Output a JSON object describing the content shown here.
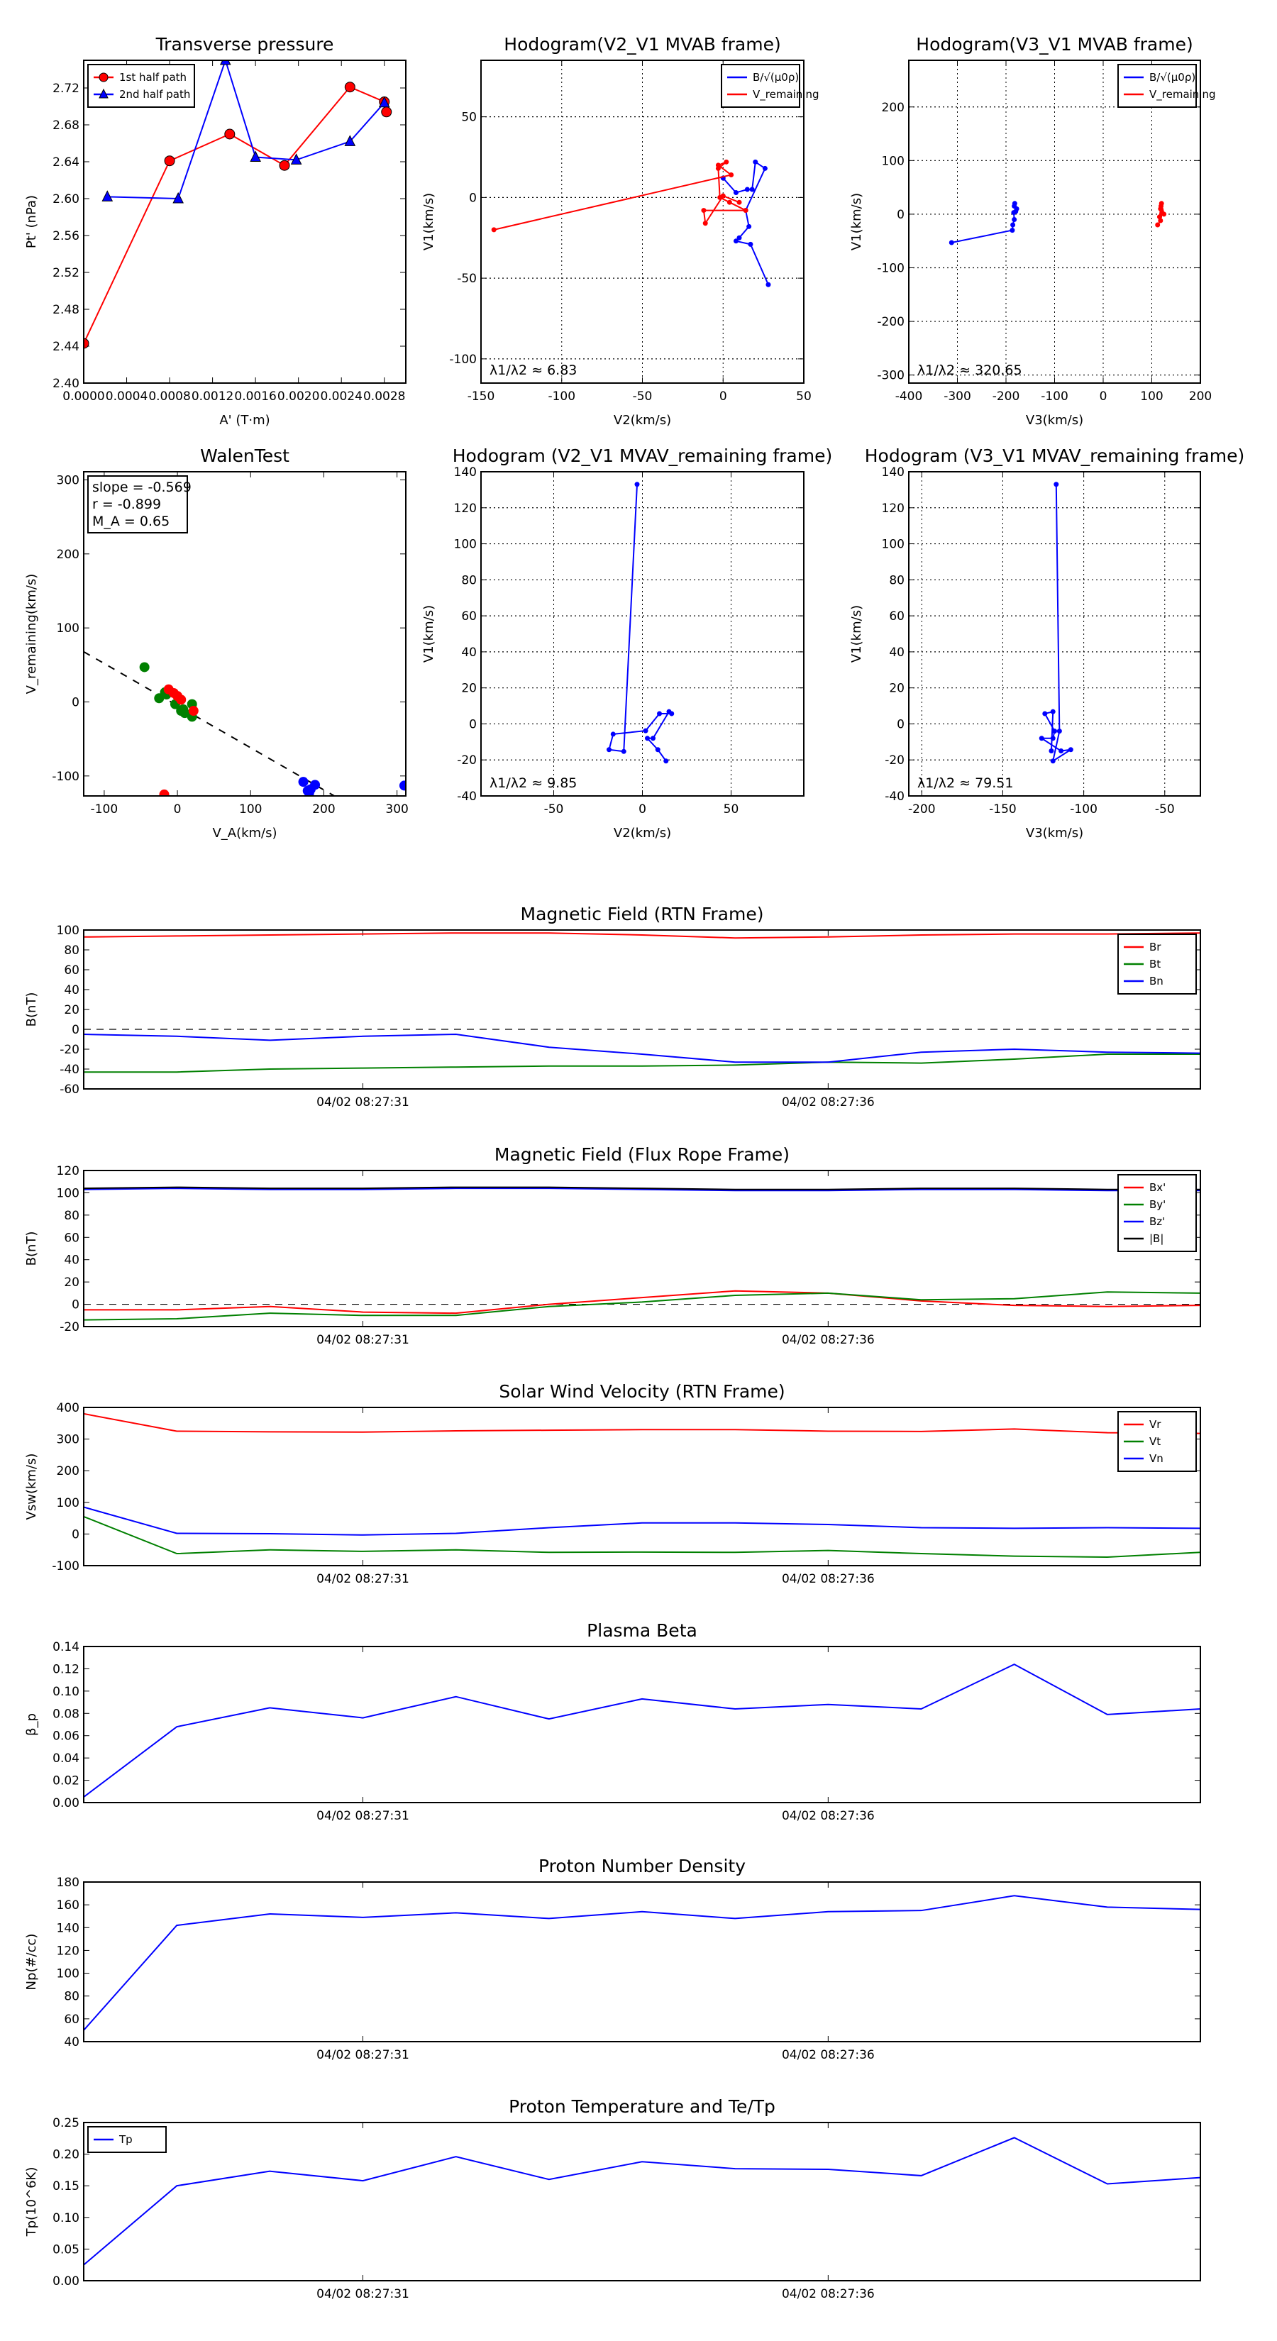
{
  "chart_data": [
    {
      "type": "line",
      "title": "Transverse pressure",
      "xlabel": "A' (T·m)",
      "ylabel": "Pt' (nPa)",
      "xlim": [
        0,
        0.003
      ],
      "ylim": [
        2.4,
        2.75
      ],
      "xticks": [
        0,
        0.0004,
        0.0008,
        0.0012,
        0.0016,
        0.002,
        0.0024,
        0.0028
      ],
      "xtick_labels": [
        "0.0000",
        "0.0004",
        "0.0008",
        "0.0012",
        "0.0016",
        "0.0020",
        "0.0024",
        "0.0028"
      ],
      "yticks": [
        2.4,
        2.44,
        2.48,
        2.52,
        2.56,
        2.6,
        2.64,
        2.68,
        2.72
      ],
      "ytick_labels": [
        "2.40",
        "2.44",
        "2.48",
        "2.52",
        "2.56",
        "2.60",
        "2.64",
        "2.68",
        "2.72"
      ],
      "grid": false,
      "legend": "upper-left",
      "series": [
        {
          "name": "1st half path",
          "color": "#ff0000",
          "marker": "circle",
          "x": [
            0,
            0.0008,
            0.00136,
            0.00187,
            0.00248,
            0.0028,
            0.00282
          ],
          "y": [
            2.443,
            2.641,
            2.67,
            2.636,
            2.721,
            2.705,
            2.694
          ]
        },
        {
          "name": "2nd half path",
          "color": "#0000ff",
          "marker": "triangle",
          "x": [
            0.00022,
            0.00088,
            0.00132,
            0.0016,
            0.00198,
            0.00248,
            0.0028
          ],
          "y": [
            2.602,
            2.6,
            2.75,
            2.645,
            2.642,
            2.662,
            2.704
          ]
        }
      ]
    },
    {
      "type": "line",
      "title": "Hodogram(V2_V1 MVAB frame)",
      "xlabel": "V2(km/s)",
      "ylabel": "V1(km/s)",
      "xlim": [
        -150,
        50
      ],
      "ylim": [
        -115,
        85
      ],
      "xticks": [
        -150,
        -100,
        -50,
        0,
        50
      ],
      "xtick_labels": [
        "-150",
        "-100",
        "-50",
        "0",
        "50"
      ],
      "yticks": [
        -100,
        -50,
        0,
        50
      ],
      "ytick_labels": [
        "-100",
        "-50",
        "0",
        "50"
      ],
      "grid": true,
      "legend": "upper-right",
      "annotation": "λ1/λ2 ≈ 6.83",
      "series": [
        {
          "name": "B/√(μ0ρ)",
          "color": "#0000ff",
          "marker": "dot",
          "x": [
            0,
            8,
            15,
            18,
            20,
            26,
            14,
            16,
            10,
            8,
            17,
            28
          ],
          "y": [
            12,
            3,
            5,
            5,
            22,
            18,
            -8,
            -18,
            -25,
            -27,
            -29,
            -54
          ]
        },
        {
          "name": "V_remaining",
          "color": "#ff0000",
          "marker": "dot",
          "x": [
            -142,
            5,
            -3,
            2,
            -3,
            -2,
            4,
            14,
            -12,
            -11,
            0,
            10
          ],
          "y": [
            -20,
            14,
            20,
            22,
            18,
            0,
            -3,
            -8,
            -8,
            -16,
            1,
            -3
          ]
        }
      ]
    },
    {
      "type": "line",
      "title": "Hodogram(V3_V1 MVAB frame)",
      "xlabel": "V3(km/s)",
      "ylabel": "V1(km/s)",
      "xlim": [
        -400,
        200
      ],
      "ylim": [
        -315,
        287
      ],
      "xticks": [
        -400,
        -300,
        -200,
        -100,
        0,
        100,
        200
      ],
      "xtick_labels": [
        "-400",
        "-300",
        "-200",
        "-100",
        "0",
        "100",
        "200"
      ],
      "yticks": [
        -300,
        -200,
        -100,
        0,
        100,
        200
      ],
      "ytick_labels": [
        "-300",
        "-200",
        "-100",
        "0",
        "100",
        "200"
      ],
      "grid": true,
      "legend": "upper-right",
      "annotation": "λ1/λ2 ≈ 320.65",
      "series": [
        {
          "name": "B/√(μ0ρ)",
          "color": "#0000ff",
          "marker": "dot",
          "x": [
            -312,
            -187,
            -186,
            -183,
            -184,
            -180,
            -178,
            -182,
            -183
          ],
          "y": [
            -53,
            -30,
            -20,
            -10,
            3,
            5,
            10,
            20,
            15
          ]
        },
        {
          "name": "V_remaining",
          "color": "#ff0000",
          "marker": "dot",
          "x": [
            112,
            118,
            121,
            118,
            125,
            120,
            116,
            119
          ],
          "y": [
            -20,
            -12,
            2,
            10,
            0,
            20,
            -5,
            15
          ]
        }
      ]
    },
    {
      "type": "scatter",
      "title": "WalenTest",
      "xlabel": "V_A(km/s)",
      "ylabel": "V_remaining(km/s)",
      "xlim": [
        -128,
        312
      ],
      "ylim": [
        -127,
        311
      ],
      "xticks": [
        -100,
        0,
        100,
        200,
        300
      ],
      "xtick_labels": [
        "-100",
        "0",
        "100",
        "200",
        "300"
      ],
      "yticks": [
        -100,
        0,
        100,
        200,
        300
      ],
      "ytick_labels": [
        "-100",
        "0",
        "100",
        "200",
        "300"
      ],
      "grid": false,
      "fit": {
        "slope": -0.569,
        "intercept": -5
      },
      "stats": [
        "slope = -0.569",
        "r = -0.899",
        "M_A = 0.65"
      ],
      "series": [
        {
          "name": "green",
          "color": "#008000",
          "x": [
            -45,
            -25,
            -17,
            -3,
            5,
            10,
            20,
            20,
            8,
            -15
          ],
          "y": [
            47,
            5,
            13,
            -3,
            -12,
            -15,
            -3,
            -20,
            -10,
            10
          ]
        },
        {
          "name": "red",
          "color": "#ff0000",
          "x": [
            -12,
            -5,
            0,
            5,
            22,
            -18
          ],
          "y": [
            17,
            12,
            8,
            3,
            -12,
            -125
          ]
        },
        {
          "name": "blue",
          "color": "#0000ff",
          "x": [
            172,
            178,
            182,
            188,
            180,
            310
          ],
          "y": [
            -108,
            -120,
            -118,
            -112,
            -123,
            -113
          ]
        }
      ]
    },
    {
      "type": "line",
      "title": "Hodogram (V2_V1 MVAV_remaining frame)",
      "xlabel": "V2(km/s)",
      "ylabel": "V1(km/s)",
      "xlim": [
        -91,
        91
      ],
      "ylim": [
        -40,
        140
      ],
      "xticks": [
        -50,
        0,
        50
      ],
      "xtick_labels": [
        "-50",
        "0",
        "50"
      ],
      "yticks": [
        -40,
        -20,
        0,
        20,
        40,
        60,
        80,
        100,
        120,
        140
      ],
      "ytick_labels": [
        "-40",
        "-20",
        "0",
        "20",
        "40",
        "60",
        "80",
        "100",
        "120",
        "140"
      ],
      "grid": true,
      "annotation": "λ1/λ2 ≈ 9.85",
      "series": [
        {
          "name": "B",
          "color": "#0000ff",
          "marker": "dot",
          "x": [
            -3,
            -10.5,
            -18.8,
            -16.5,
            1.8,
            9.6,
            16.5,
            15,
            6,
            2.8,
            8.7,
            13.3
          ],
          "y": [
            133,
            -15.3,
            -14.3,
            -5.7,
            -3.8,
            5.7,
            5.7,
            6.8,
            -8,
            -8,
            -14.3,
            -20.6
          ]
        }
      ]
    },
    {
      "type": "line",
      "title": "Hodogram (V3_V1 MVAV_remaining frame)",
      "xlabel": "V3(km/s)",
      "ylabel": "V1(km/s)",
      "xlim": [
        -208,
        -28
      ],
      "ylim": [
        -40,
        140
      ],
      "xticks": [
        -200,
        -150,
        -100,
        -50
      ],
      "xtick_labels": [
        "-200",
        "-150",
        "-100",
        "-50"
      ],
      "yticks": [
        -40,
        -20,
        0,
        20,
        40,
        60,
        80,
        100,
        120,
        140
      ],
      "ytick_labels": [
        "-40",
        "-20",
        "0",
        "20",
        "40",
        "60",
        "80",
        "100",
        "120",
        "140"
      ],
      "grid": true,
      "annotation": "λ1/λ2 ≈ 79.51",
      "series": [
        {
          "name": "B",
          "color": "#0000ff",
          "marker": "dot",
          "x": [
            -117,
            -115,
            -119,
            -108,
            -114,
            -126,
            -119,
            -118,
            -124,
            -119,
            -120
          ],
          "y": [
            133,
            -4,
            -20.6,
            -14.3,
            -15,
            -8,
            -8,
            -4,
            5.7,
            6.8,
            -15
          ]
        }
      ]
    },
    {
      "type": "line",
      "title": "Magnetic Field (RTN Frame)",
      "ylabel": "B(nT)",
      "xlim": [
        0,
        12
      ],
      "ylim": [
        -60,
        100
      ],
      "xticks": [
        3,
        8
      ],
      "xtick_labels": [
        "04/02 08:27:31",
        "04/02 08:27:36"
      ],
      "yticks": [
        -60,
        -40,
        -20,
        0,
        20,
        40,
        60,
        80,
        100
      ],
      "ytick_labels": [
        "-60",
        "-40",
        "-20",
        "0",
        "20",
        "40",
        "60",
        "80",
        "100"
      ],
      "zero_line": true,
      "legend": "upper-right",
      "series": [
        {
          "name": "Br",
          "color": "#ff0000",
          "y": [
            93,
            94,
            95,
            96,
            97,
            97,
            95,
            92,
            93,
            95,
            96,
            96,
            97
          ]
        },
        {
          "name": "Bt",
          "color": "#008000",
          "y": [
            -43,
            -43,
            -40,
            -39,
            -38,
            -37,
            -37,
            -36,
            -33,
            -34,
            -30,
            -25,
            -25
          ]
        },
        {
          "name": "Bn",
          "color": "#0000ff",
          "y": [
            -5,
            -7,
            -11,
            -7,
            -5,
            -18,
            -25,
            -33,
            -33,
            -23,
            -20,
            -23,
            -24
          ]
        }
      ]
    },
    {
      "type": "line",
      "title": "Magnetic Field (Flux Rope Frame)",
      "ylabel": "B(nT)",
      "xlim": [
        0,
        12
      ],
      "ylim": [
        -20,
        120
      ],
      "xticks": [
        3,
        8
      ],
      "xtick_labels": [
        "04/02 08:27:31",
        "04/02 08:27:36"
      ],
      "yticks": [
        -20,
        0,
        20,
        40,
        60,
        80,
        100,
        120
      ],
      "ytick_labels": [
        "-20",
        "0",
        "20",
        "40",
        "60",
        "80",
        "100",
        "120"
      ],
      "zero_line": true,
      "legend": "upper-right",
      "series": [
        {
          "name": "Bx'",
          "color": "#ff0000",
          "y": [
            -5,
            -5,
            -2,
            -7,
            -8,
            0,
            6,
            12,
            10,
            3,
            -1,
            -2,
            -1
          ]
        },
        {
          "name": "By'",
          "color": "#008000",
          "y": [
            -14,
            -13,
            -8,
            -10,
            -10,
            -2,
            2,
            8,
            10,
            4,
            5,
            11,
            10
          ]
        },
        {
          "name": "Bz'",
          "color": "#0000ff",
          "y": [
            103,
            104,
            103,
            103,
            104,
            104,
            103,
            102,
            102,
            103,
            103,
            102,
            102
          ]
        },
        {
          "name": "|B|",
          "color": "#000000",
          "y": [
            104,
            105,
            104,
            104,
            105,
            105,
            104,
            103,
            103,
            104,
            104,
            103,
            103
          ]
        }
      ]
    },
    {
      "type": "line",
      "title": "Solar Wind Velocity (RTN Frame)",
      "ylabel": "Vsw(km/s)",
      "xlim": [
        0,
        12
      ],
      "ylim": [
        -100,
        400
      ],
      "xticks": [
        3,
        8
      ],
      "xtick_labels": [
        "04/02 08:27:31",
        "04/02 08:27:36"
      ],
      "yticks": [
        -100,
        0,
        100,
        200,
        300,
        400
      ],
      "ytick_labels": [
        "-100",
        "0",
        "100",
        "200",
        "300",
        "400"
      ],
      "legend": "upper-right",
      "series": [
        {
          "name": "Vr",
          "color": "#ff0000",
          "y": [
            380,
            325,
            323,
            322,
            326,
            328,
            330,
            330,
            325,
            324,
            332,
            320,
            318
          ]
        },
        {
          "name": "Vt",
          "color": "#008000",
          "y": [
            55,
            -62,
            -50,
            -55,
            -50,
            -58,
            -57,
            -58,
            -52,
            -62,
            -70,
            -73,
            -58
          ]
        },
        {
          "name": "Vn",
          "color": "#0000ff",
          "y": [
            85,
            2,
            1,
            -3,
            2,
            20,
            35,
            35,
            30,
            20,
            18,
            20,
            18
          ]
        }
      ]
    },
    {
      "type": "line",
      "title": "Plasma Beta",
      "ylabel": "β_p",
      "xlim": [
        0,
        12
      ],
      "ylim": [
        0,
        0.14
      ],
      "xticks": [
        3,
        8
      ],
      "xtick_labels": [
        "04/02 08:27:31",
        "04/02 08:27:36"
      ],
      "yticks": [
        0,
        0.02,
        0.04,
        0.06,
        0.08,
        0.1,
        0.12,
        0.14
      ],
      "ytick_labels": [
        "0.00",
        "0.02",
        "0.04",
        "0.06",
        "0.08",
        "0.10",
        "0.12",
        "0.14"
      ],
      "series": [
        {
          "name": "beta",
          "color": "#0000ff",
          "y": [
            0.005,
            0.068,
            0.085,
            0.076,
            0.095,
            0.075,
            0.093,
            0.084,
            0.088,
            0.084,
            0.124,
            0.079,
            0.084
          ]
        }
      ]
    },
    {
      "type": "line",
      "title": "Proton Number Density",
      "ylabel": "Np(#/cc)",
      "xlim": [
        0,
        12
      ],
      "ylim": [
        40,
        180
      ],
      "xticks": [
        3,
        8
      ],
      "xtick_labels": [
        "04/02 08:27:31",
        "04/02 08:27:36"
      ],
      "yticks": [
        40,
        60,
        80,
        100,
        120,
        140,
        160,
        180
      ],
      "ytick_labels": [
        "40",
        "60",
        "80",
        "100",
        "120",
        "140",
        "160",
        "180"
      ],
      "series": [
        {
          "name": "Np",
          "color": "#0000ff",
          "y": [
            50,
            142,
            152,
            149,
            153,
            148,
            154,
            148,
            154,
            155,
            168,
            158,
            156
          ]
        }
      ]
    },
    {
      "type": "line",
      "title": "Proton Temperature and Te/Tp",
      "ylabel": "Tp(10^6K)",
      "xlim": [
        0,
        12
      ],
      "ylim": [
        0,
        0.25
      ],
      "xticks": [
        3,
        8
      ],
      "xtick_labels": [
        "04/02 08:27:31",
        "04/02 08:27:36"
      ],
      "yticks": [
        0,
        0.05,
        0.1,
        0.15,
        0.2,
        0.25
      ],
      "ytick_labels": [
        "0.00",
        "0.05",
        "0.10",
        "0.15",
        "0.20",
        "0.25"
      ],
      "legend": "upper-left",
      "series": [
        {
          "name": "Tp",
          "color": "#0000ff",
          "y": [
            0.025,
            0.15,
            0.173,
            0.158,
            0.196,
            0.16,
            0.188,
            0.177,
            0.176,
            0.166,
            0.226,
            0.153,
            0.163
          ]
        }
      ]
    }
  ]
}
